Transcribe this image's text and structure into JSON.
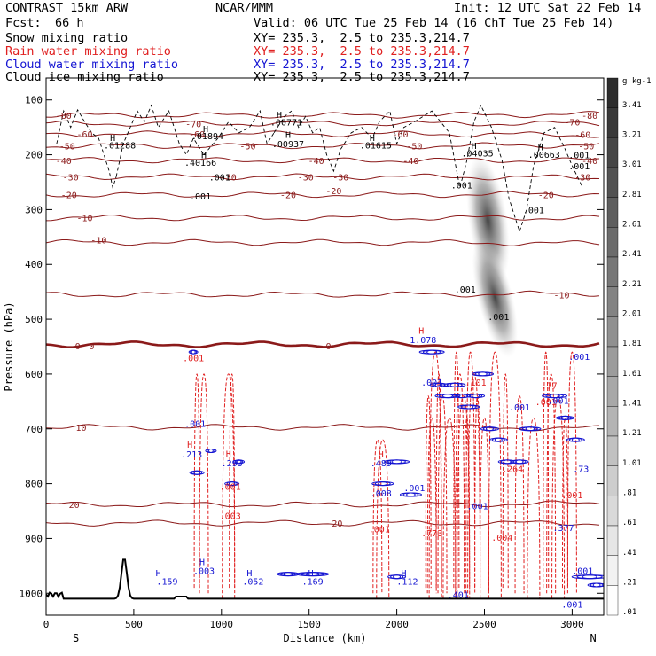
{
  "header": {
    "model": "CONTRAST 15km ARW",
    "org": "NCAR/MMM",
    "init": "Init: 12 UTC Sat 22 Feb 14",
    "fcst_label": "Fcst:",
    "fcst_value": "66 h",
    "valid": "Valid: 06 UTC Tue 25 Feb 14 (16 ChT Tue 25 Feb 14)"
  },
  "colors": {
    "theta": "#8b1a1a",
    "rain": "#e02020",
    "cloud": "#1414d2",
    "black": "#000000"
  },
  "chart_data": {
    "type": "contour",
    "xlabel": "Distance (km)",
    "ylabel": "Pressure (hPa)",
    "xlim": [
      0,
      3180
    ],
    "ylim": [
      1040,
      60
    ],
    "x_ticks": [
      "0",
      "500",
      "1000",
      "1500",
      "2000",
      "2500",
      "3000"
    ],
    "x_tick_values": [
      0,
      500,
      1000,
      1500,
      2000,
      2500,
      3000
    ],
    "y_ticks": [
      "100",
      "200",
      "300",
      "400",
      "500",
      "600",
      "700",
      "800",
      "900",
      "1000"
    ],
    "y_tick_values": [
      100,
      200,
      300,
      400,
      500,
      600,
      700,
      800,
      900,
      1000
    ],
    "x_end_labels": {
      "left": "S",
      "right": "N"
    },
    "fields": [
      {
        "name": "Snow mixing ratio",
        "xy": "XY= 235.3,  2.5 to 235.3,214.7",
        "color": "#000000"
      },
      {
        "name": "Rain water mixing ratio",
        "xy": "XY= 235.3,  2.5 to 235.3,214.7",
        "color": "#e02020"
      },
      {
        "name": "Cloud water mixing ratio",
        "xy": "XY= 235.3,  2.5 to 235.3,214.7",
        "color": "#1414d2"
      },
      {
        "name": "Cloud ice mixing ratio",
        "xy": "XY= 235.3,  2.5 to 235.3,214.7",
        "color": "#000000"
      }
    ],
    "colorbar": {
      "unit": "g kg-1",
      "labels": [
        "3.41",
        "3.21",
        "3.01",
        "2.81",
        "2.61",
        "2.41",
        "2.21",
        "2.01",
        "1.81",
        "1.61",
        "1.41",
        "1.21",
        "1.01",
        ".81",
        ".61",
        ".41",
        ".21",
        ".01"
      ],
      "values": [
        3.41,
        3.21,
        3.01,
        2.81,
        2.61,
        2.41,
        2.21,
        2.01,
        1.81,
        1.61,
        1.41,
        1.21,
        1.01,
        0.81,
        0.61,
        0.41,
        0.21,
        0.01
      ]
    },
    "temperature_levels": [
      {
        "label": "-80",
        "p": 128
      },
      {
        "label": "-70",
        "p": 143
      },
      {
        "label": "-60",
        "p": 162
      },
      {
        "label": "-50",
        "p": 184
      },
      {
        "label": "-40",
        "p": 210
      },
      {
        "label": "-30",
        "p": 240
      },
      {
        "label": "-20",
        "p": 273
      },
      {
        "label": "-10",
        "p": 315
      },
      {
        "label": "-10",
        "p": 360
      },
      {
        "label": "-10",
        "p": 455
      },
      {
        "label": "0",
        "p": 546
      },
      {
        "label": "10",
        "p": 697
      },
      {
        "label": "20",
        "p": 838
      },
      {
        "label": "20",
        "p": 872
      }
    ],
    "temperature_labels": [
      {
        "text": "-80",
        "x": 100,
        "p": 128
      },
      {
        "text": "-80",
        "x": 3100,
        "p": 128
      },
      {
        "text": "-70",
        "x": 840,
        "p": 143
      },
      {
        "text": "-70",
        "x": 3000,
        "p": 140
      },
      {
        "text": "-60",
        "x": 220,
        "p": 162
      },
      {
        "text": "-60",
        "x": 860,
        "p": 162
      },
      {
        "text": "-60",
        "x": 2020,
        "p": 162
      },
      {
        "text": "-60",
        "x": 3060,
        "p": 163
      },
      {
        "text": "-50",
        "x": 120,
        "p": 184
      },
      {
        "text": "-50",
        "x": 1150,
        "p": 184
      },
      {
        "text": "-50",
        "x": 2100,
        "p": 184
      },
      {
        "text": "-50",
        "x": 3080,
        "p": 184
      },
      {
        "text": "-40",
        "x": 100,
        "p": 210
      },
      {
        "text": "-40",
        "x": 1540,
        "p": 210
      },
      {
        "text": "-40",
        "x": 2080,
        "p": 210
      },
      {
        "text": "-40",
        "x": 3100,
        "p": 210
      },
      {
        "text": "-30",
        "x": 140,
        "p": 240
      },
      {
        "text": "-30",
        "x": 1040,
        "p": 240
      },
      {
        "text": "-30",
        "x": 1480,
        "p": 240
      },
      {
        "text": "-30",
        "x": 1680,
        "p": 240
      },
      {
        "text": "-30",
        "x": 3060,
        "p": 240
      },
      {
        "text": "-20",
        "x": 130,
        "p": 273
      },
      {
        "text": "-20",
        "x": 1380,
        "p": 273
      },
      {
        "text": "-20",
        "x": 1640,
        "p": 265
      },
      {
        "text": "-20",
        "x": 2850,
        "p": 273
      },
      {
        "text": "-10",
        "x": 220,
        "p": 315
      },
      {
        "text": "-10",
        "x": 300,
        "p": 355
      },
      {
        "text": "-10",
        "x": 2940,
        "p": 455
      },
      {
        "text": "0",
        "x": 180,
        "p": 548
      },
      {
        "text": "0",
        "x": 260,
        "p": 548
      },
      {
        "text": "0",
        "x": 1610,
        "p": 548
      },
      {
        "text": "10",
        "x": 200,
        "p": 697
      },
      {
        "text": "20",
        "x": 160,
        "p": 838
      },
      {
        "text": "20",
        "x": 1660,
        "p": 872
      }
    ],
    "maxima_labels": [
      {
        "text": "H",
        "x": 380,
        "p": 168
      },
      {
        "text": ".01288",
        "x": 420,
        "p": 182
      },
      {
        "text": "H",
        "x": 910,
        "p": 152
      },
      {
        "text": ".01894",
        "x": 920,
        "p": 165
      },
      {
        "text": "H",
        "x": 1330,
        "p": 126
      },
      {
        "text": ".00771",
        "x": 1370,
        "p": 140
      },
      {
        "text": "H",
        "x": 1380,
        "p": 163
      },
      {
        "text": ".00937",
        "x": 1380,
        "p": 180
      },
      {
        "text": "H",
        "x": 1860,
        "p": 168
      },
      {
        "text": ".01615",
        "x": 1880,
        "p": 182
      },
      {
        "text": "H",
        "x": 2440,
        "p": 183
      },
      {
        "text": ".04035",
        "x": 2460,
        "p": 197
      },
      {
        "text": "H",
        "x": 2820,
        "p": 185
      },
      {
        "text": ".00663",
        "x": 2840,
        "p": 199
      },
      {
        "text": "H",
        "x": 900,
        "p": 200
      },
      {
        "text": ".40166",
        "x": 880,
        "p": 214
      },
      {
        "text": ".001",
        "x": 990,
        "p": 240
      },
      {
        "text": ".001",
        "x": 880,
        "p": 275
      },
      {
        "text": ".001",
        "x": 2370,
        "p": 255
      },
      {
        "text": ".001",
        "x": 2780,
        "p": 300
      },
      {
        "text": ".001",
        "x": 3040,
        "p": 200
      },
      {
        "text": ".001",
        "x": 3040,
        "p": 220
      },
      {
        "text": "H",
        "x": 2140,
        "p": 520
      },
      {
        "text": "1.078",
        "x": 2150,
        "p": 537
      },
      {
        "text": ".001",
        "x": 2390,
        "p": 445
      },
      {
        "text": ".001",
        "x": 2580,
        "p": 495
      },
      {
        "text": ".001",
        "x": 840,
        "p": 570
      },
      {
        "text": ".001",
        "x": 3040,
        "p": 568
      },
      {
        "text": "H",
        "x": 820,
        "p": 728
      },
      {
        "text": ".213",
        "x": 830,
        "p": 746
      },
      {
        "text": "H",
        "x": 1040,
        "p": 745
      },
      {
        "text": ".293",
        "x": 1060,
        "p": 762
      },
      {
        "text": "H",
        "x": 1910,
        "p": 746
      },
      {
        "text": ".489",
        "x": 1910,
        "p": 762
      },
      {
        "text": ".001",
        "x": 1050,
        "p": 805
      },
      {
        "text": ".001",
        "x": 2100,
        "p": 807
      },
      {
        "text": ".001",
        "x": 2850,
        "p": 650
      },
      {
        "text": ".001",
        "x": 2920,
        "p": 648
      },
      {
        "text": ".77",
        "x": 2870,
        "p": 620
      },
      {
        "text": ".001",
        "x": 2700,
        "p": 660
      },
      {
        "text": ".264",
        "x": 2660,
        "p": 772
      },
      {
        "text": ".73",
        "x": 3050,
        "p": 772
      },
      {
        "text": ".001",
        "x": 3000,
        "p": 820
      },
      {
        "text": ".001",
        "x": 2460,
        "p": 840
      },
      {
        "text": ".004",
        "x": 2600,
        "p": 898
      },
      {
        "text": "H",
        "x": 890,
        "p": 942
      },
      {
        "text": ".003",
        "x": 900,
        "p": 958
      },
      {
        "text": ".001",
        "x": 850,
        "p": 690
      },
      {
        "text": ".003",
        "x": 1050,
        "p": 858
      },
      {
        "text": ".008",
        "x": 1910,
        "p": 817
      },
      {
        "text": ".001",
        "x": 1900,
        "p": 882
      },
      {
        "text": "H",
        "x": 640,
        "p": 962
      },
      {
        "text": ".159",
        "x": 690,
        "p": 978
      },
      {
        "text": "H",
        "x": 1160,
        "p": 962
      },
      {
        "text": ".052",
        "x": 1180,
        "p": 978
      },
      {
        "text": "H",
        "x": 1510,
        "p": 962
      },
      {
        "text": ".169",
        "x": 1520,
        "p": 978
      },
      {
        "text": "H",
        "x": 2040,
        "p": 962
      },
      {
        "text": ".112",
        "x": 2060,
        "p": 978
      },
      {
        "text": ".001",
        "x": 3060,
        "p": 958
      },
      {
        "text": ".001",
        "x": 3000,
        "p": 1020
      },
      {
        "text": ".401",
        "x": 2350,
        "p": 1002
      },
      {
        "text": ".773",
        "x": 2200,
        "p": 890
      },
      {
        "text": ".001",
        "x": 2200,
        "p": 615
      },
      {
        "text": ".101",
        "x": 2450,
        "p": 615
      },
      {
        "text": ".377",
        "x": 2950,
        "p": 880
      }
    ]
  },
  "footer": {
    "xlabel": "Distance (km)",
    "left_dir": "S",
    "right_dir": "N"
  }
}
